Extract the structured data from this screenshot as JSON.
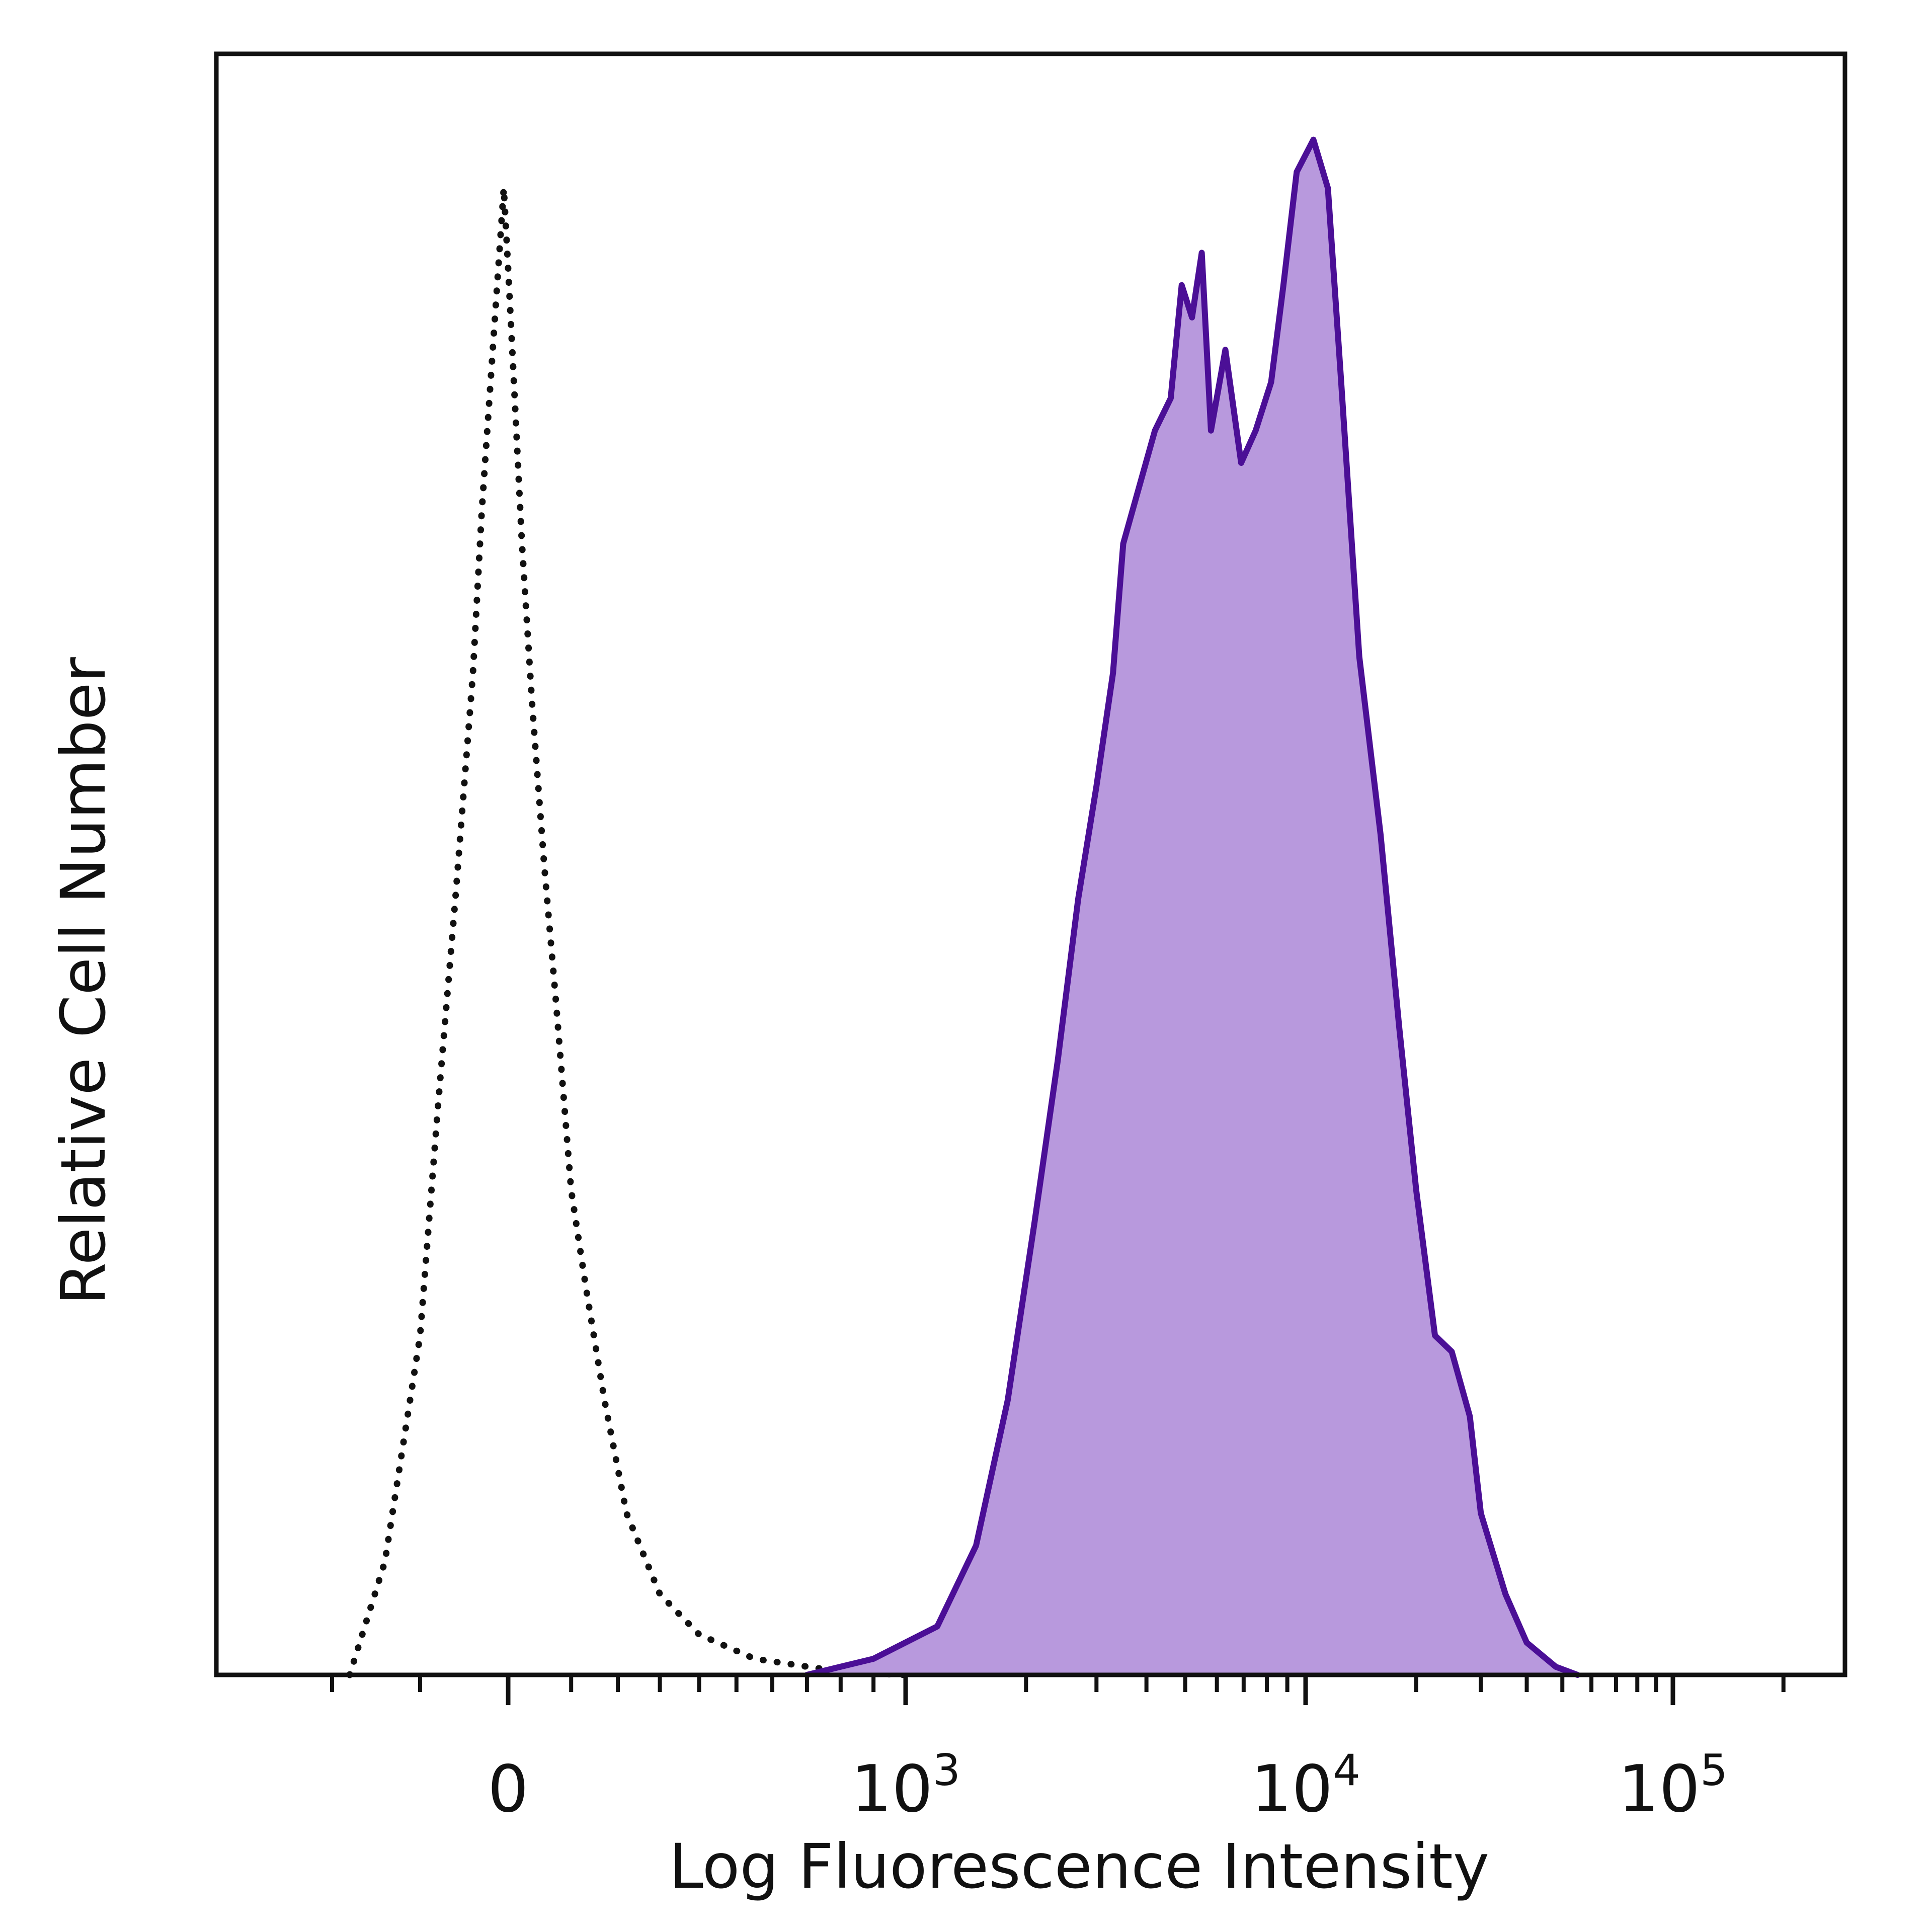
{
  "chart_data": {
    "type": "area",
    "xlabel": "Log Fluorescence Intensity",
    "ylabel": "Relative Cell Number",
    "x_scale": "biexponential",
    "xlim": [
      -300,
      200000
    ],
    "ylim": [
      0,
      100
    ],
    "grid": false,
    "tick_labels": [
      {
        "value": 0,
        "base": "0",
        "exp": ""
      },
      {
        "value": 1000,
        "base": "10",
        "exp": "3"
      },
      {
        "value": 10000,
        "base": "10",
        "exp": "4"
      },
      {
        "value": 100000,
        "base": "10",
        "exp": "5"
      }
    ],
    "minor_ticks": [
      -200,
      -100,
      100,
      200,
      300,
      400,
      500,
      600,
      700,
      800,
      900,
      2000,
      3000,
      4000,
      5000,
      6000,
      7000,
      8000,
      9000,
      20000,
      30000,
      40000,
      50000,
      60000,
      70000,
      80000,
      90000,
      200000
    ],
    "series": [
      {
        "style": "dotted",
        "color": "#111111",
        "fill": "none",
        "x": [
          -180,
          -140,
          -100,
          -80,
          -60,
          -40,
          -30,
          -20,
          -10,
          -5,
          0,
          5,
          15,
          30,
          50,
          70,
          100,
          130,
          170,
          220,
          300,
          400,
          550,
          800,
          1000
        ],
        "y": [
          0,
          7,
          21,
          35,
          48,
          62,
          72,
          80,
          88,
          92,
          87,
          80,
          70,
          60,
          50,
          42,
          30,
          24,
          17,
          10,
          5,
          2.5,
          1,
          0.2,
          0
        ]
      },
      {
        "style": "solid",
        "color": "#4b0f96",
        "fill": "#b899dd",
        "x": [
          700,
          900,
          1200,
          1500,
          1800,
          2100,
          2400,
          2700,
          3000,
          3300,
          3500,
          4200,
          4600,
          4900,
          5200,
          5500,
          5800,
          6300,
          6900,
          7500,
          8200,
          8800,
          9500,
          10500,
          11500,
          12500,
          14000,
          16000,
          18000,
          20000,
          22500,
          25000,
          28000,
          30000,
          35000,
          40000,
          48000,
          55000
        ],
        "y": [
          0,
          1,
          3,
          8,
          17,
          28,
          38,
          48,
          55,
          62,
          70,
          77,
          79,
          86,
          84,
          88,
          77,
          82,
          75,
          77,
          80,
          86,
          93,
          95,
          92,
          80,
          63,
          52,
          40,
          30,
          21,
          20,
          16,
          10,
          5,
          2,
          0.5,
          0
        ]
      }
    ]
  }
}
